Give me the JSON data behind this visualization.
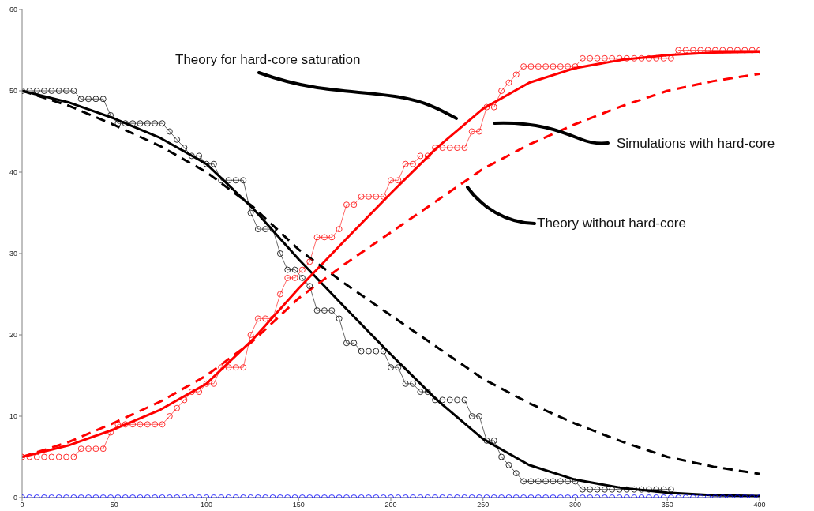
{
  "chart_data": {
    "type": "line",
    "x": [
      0,
      4,
      8,
      12,
      16,
      20,
      24,
      28,
      32,
      36,
      40,
      44,
      48,
      52,
      56,
      60,
      64,
      68,
      72,
      76,
      80,
      84,
      88,
      92,
      96,
      100,
      104,
      108,
      112,
      116,
      120,
      124,
      128,
      132,
      136,
      140,
      144,
      148,
      152,
      156,
      160,
      164,
      168,
      172,
      176,
      180,
      184,
      188,
      192,
      196,
      200,
      204,
      208,
      212,
      216,
      220,
      224,
      228,
      232,
      236,
      240,
      244,
      248,
      252,
      256,
      260,
      264,
      268,
      272,
      276,
      280,
      284,
      288,
      292,
      296,
      300,
      304,
      308,
      312,
      316,
      320,
      324,
      328,
      332,
      336,
      340,
      344,
      348,
      352,
      356,
      360,
      364,
      368,
      372,
      376,
      380,
      384,
      388,
      392,
      396,
      400
    ],
    "xlim": [
      0,
      400
    ],
    "xticks": [
      0,
      50,
      100,
      150,
      200,
      250,
      300,
      350,
      400
    ],
    "ylim": [
      0,
      60
    ],
    "yticks": [
      0,
      10,
      20,
      30,
      40,
      50,
      60
    ],
    "series": [
      {
        "color": "#000000",
        "marker": "circle",
        "values": [
          50,
          50,
          50,
          50,
          50,
          50,
          50,
          50,
          49,
          49,
          49,
          49,
          47,
          46,
          46,
          46,
          46,
          46,
          46,
          46,
          45,
          44,
          43,
          42,
          42,
          41,
          41,
          39,
          39,
          39,
          39,
          35,
          33,
          33,
          33,
          30,
          28,
          28,
          27,
          26,
          23,
          23,
          23,
          22,
          19,
          19,
          18,
          18,
          18,
          18,
          16,
          16,
          14,
          14,
          13,
          13,
          12,
          12,
          12,
          12,
          12,
          10,
          10,
          7,
          7,
          5,
          4,
          3,
          2,
          2,
          2,
          2,
          2,
          2,
          2,
          2,
          1,
          1,
          1,
          1,
          1,
          1,
          1,
          1,
          1,
          1,
          1,
          1,
          1,
          null,
          null,
          null,
          null,
          null,
          null,
          null,
          null,
          null,
          null,
          null,
          null
        ]
      },
      {
        "color": "#ff0000",
        "marker": "circle",
        "values": [
          5,
          5,
          5,
          5,
          5,
          5,
          5,
          5,
          6,
          6,
          6,
          6,
          8,
          9,
          9,
          9,
          9,
          9,
          9,
          9,
          10,
          11,
          12,
          13,
          13,
          14,
          14,
          16,
          16,
          16,
          16,
          20,
          22,
          22,
          22,
          25,
          27,
          27,
          28,
          29,
          32,
          32,
          32,
          33,
          36,
          36,
          37,
          37,
          37,
          37,
          39,
          39,
          41,
          41,
          42,
          42,
          43,
          43,
          43,
          43,
          43,
          45,
          45,
          48,
          48,
          50,
          51,
          52,
          53,
          53,
          53,
          53,
          53,
          53,
          53,
          53,
          54,
          54,
          54,
          54,
          54,
          54,
          54,
          54,
          54,
          54,
          54,
          54,
          54,
          55,
          55,
          55,
          55,
          55,
          55,
          55,
          55,
          55,
          55,
          55,
          55
        ]
      },
      {
        "color": "#0000ff",
        "marker": "circle",
        "values": [
          0,
          0,
          0,
          0,
          0,
          0,
          0,
          0,
          0,
          0,
          0,
          0,
          0,
          0,
          0,
          0,
          0,
          0,
          0,
          0,
          0,
          0,
          0,
          0,
          0,
          0,
          0,
          0,
          0,
          0,
          0,
          0,
          0,
          0,
          0,
          0,
          0,
          0,
          0,
          0,
          0,
          0,
          0,
          0,
          0,
          0,
          0,
          0,
          0,
          0,
          0,
          0,
          0,
          0,
          0,
          0,
          0,
          0,
          0,
          0,
          0,
          0,
          0,
          0,
          0,
          0,
          0,
          0,
          0,
          0,
          0,
          0,
          0,
          0,
          0,
          0,
          0,
          0,
          0,
          0,
          0,
          0,
          0,
          0,
          0,
          0,
          0,
          0,
          0,
          0,
          0,
          0,
          0,
          0,
          0,
          0,
          0,
          0,
          0,
          0,
          0
        ]
      },
      {
        "color": "#000000",
        "marker": "none",
        "line_style": "solid",
        "x": [
          0,
          25,
          50,
          75,
          100,
          125,
          150,
          175,
          200,
          225,
          250,
          275,
          300,
          325,
          350,
          375,
          400
        ],
        "values": [
          50,
          48.6,
          46.6,
          44.2,
          41,
          35.6,
          29.3,
          23.4,
          17.6,
          12,
          7.2,
          4,
          2.2,
          1.2,
          0.6,
          0.3,
          0.2
        ]
      },
      {
        "color": "#ff0000",
        "marker": "none",
        "line_style": "solid",
        "x": [
          0,
          25,
          50,
          75,
          100,
          125,
          150,
          175,
          200,
          225,
          250,
          275,
          300,
          325,
          350,
          375,
          400
        ],
        "values": [
          5,
          6.4,
          8.4,
          10.8,
          14,
          19.4,
          25.7,
          31.6,
          37.4,
          43,
          47.8,
          51,
          52.8,
          53.8,
          54.4,
          54.7,
          54.8
        ]
      },
      {
        "color": "#000000",
        "marker": "none",
        "line_style": "dashed",
        "x": [
          0,
          25,
          50,
          75,
          100,
          125,
          150,
          175,
          200,
          225,
          250,
          275,
          300,
          325,
          350,
          375,
          400
        ],
        "values": [
          50,
          48.2,
          45.8,
          43.2,
          40,
          35.8,
          30.5,
          26.3,
          22.4,
          18.5,
          14.6,
          11.6,
          9.1,
          6.9,
          5,
          3.8,
          2.9
        ]
      },
      {
        "color": "#ff0000",
        "marker": "none",
        "line_style": "dashed",
        "x": [
          0,
          25,
          50,
          75,
          100,
          125,
          150,
          175,
          200,
          225,
          250,
          275,
          300,
          325,
          350,
          375,
          400
        ],
        "values": [
          5,
          6.8,
          9.2,
          11.8,
          15,
          19.2,
          24.5,
          28.7,
          32.6,
          36.5,
          40.4,
          43.4,
          45.9,
          48.1,
          50,
          51.2,
          52.1
        ]
      }
    ],
    "annotations": [
      "Theory for hard-core saturation",
      "Simulations with hard-core",
      "Theory without hard-core"
    ]
  }
}
